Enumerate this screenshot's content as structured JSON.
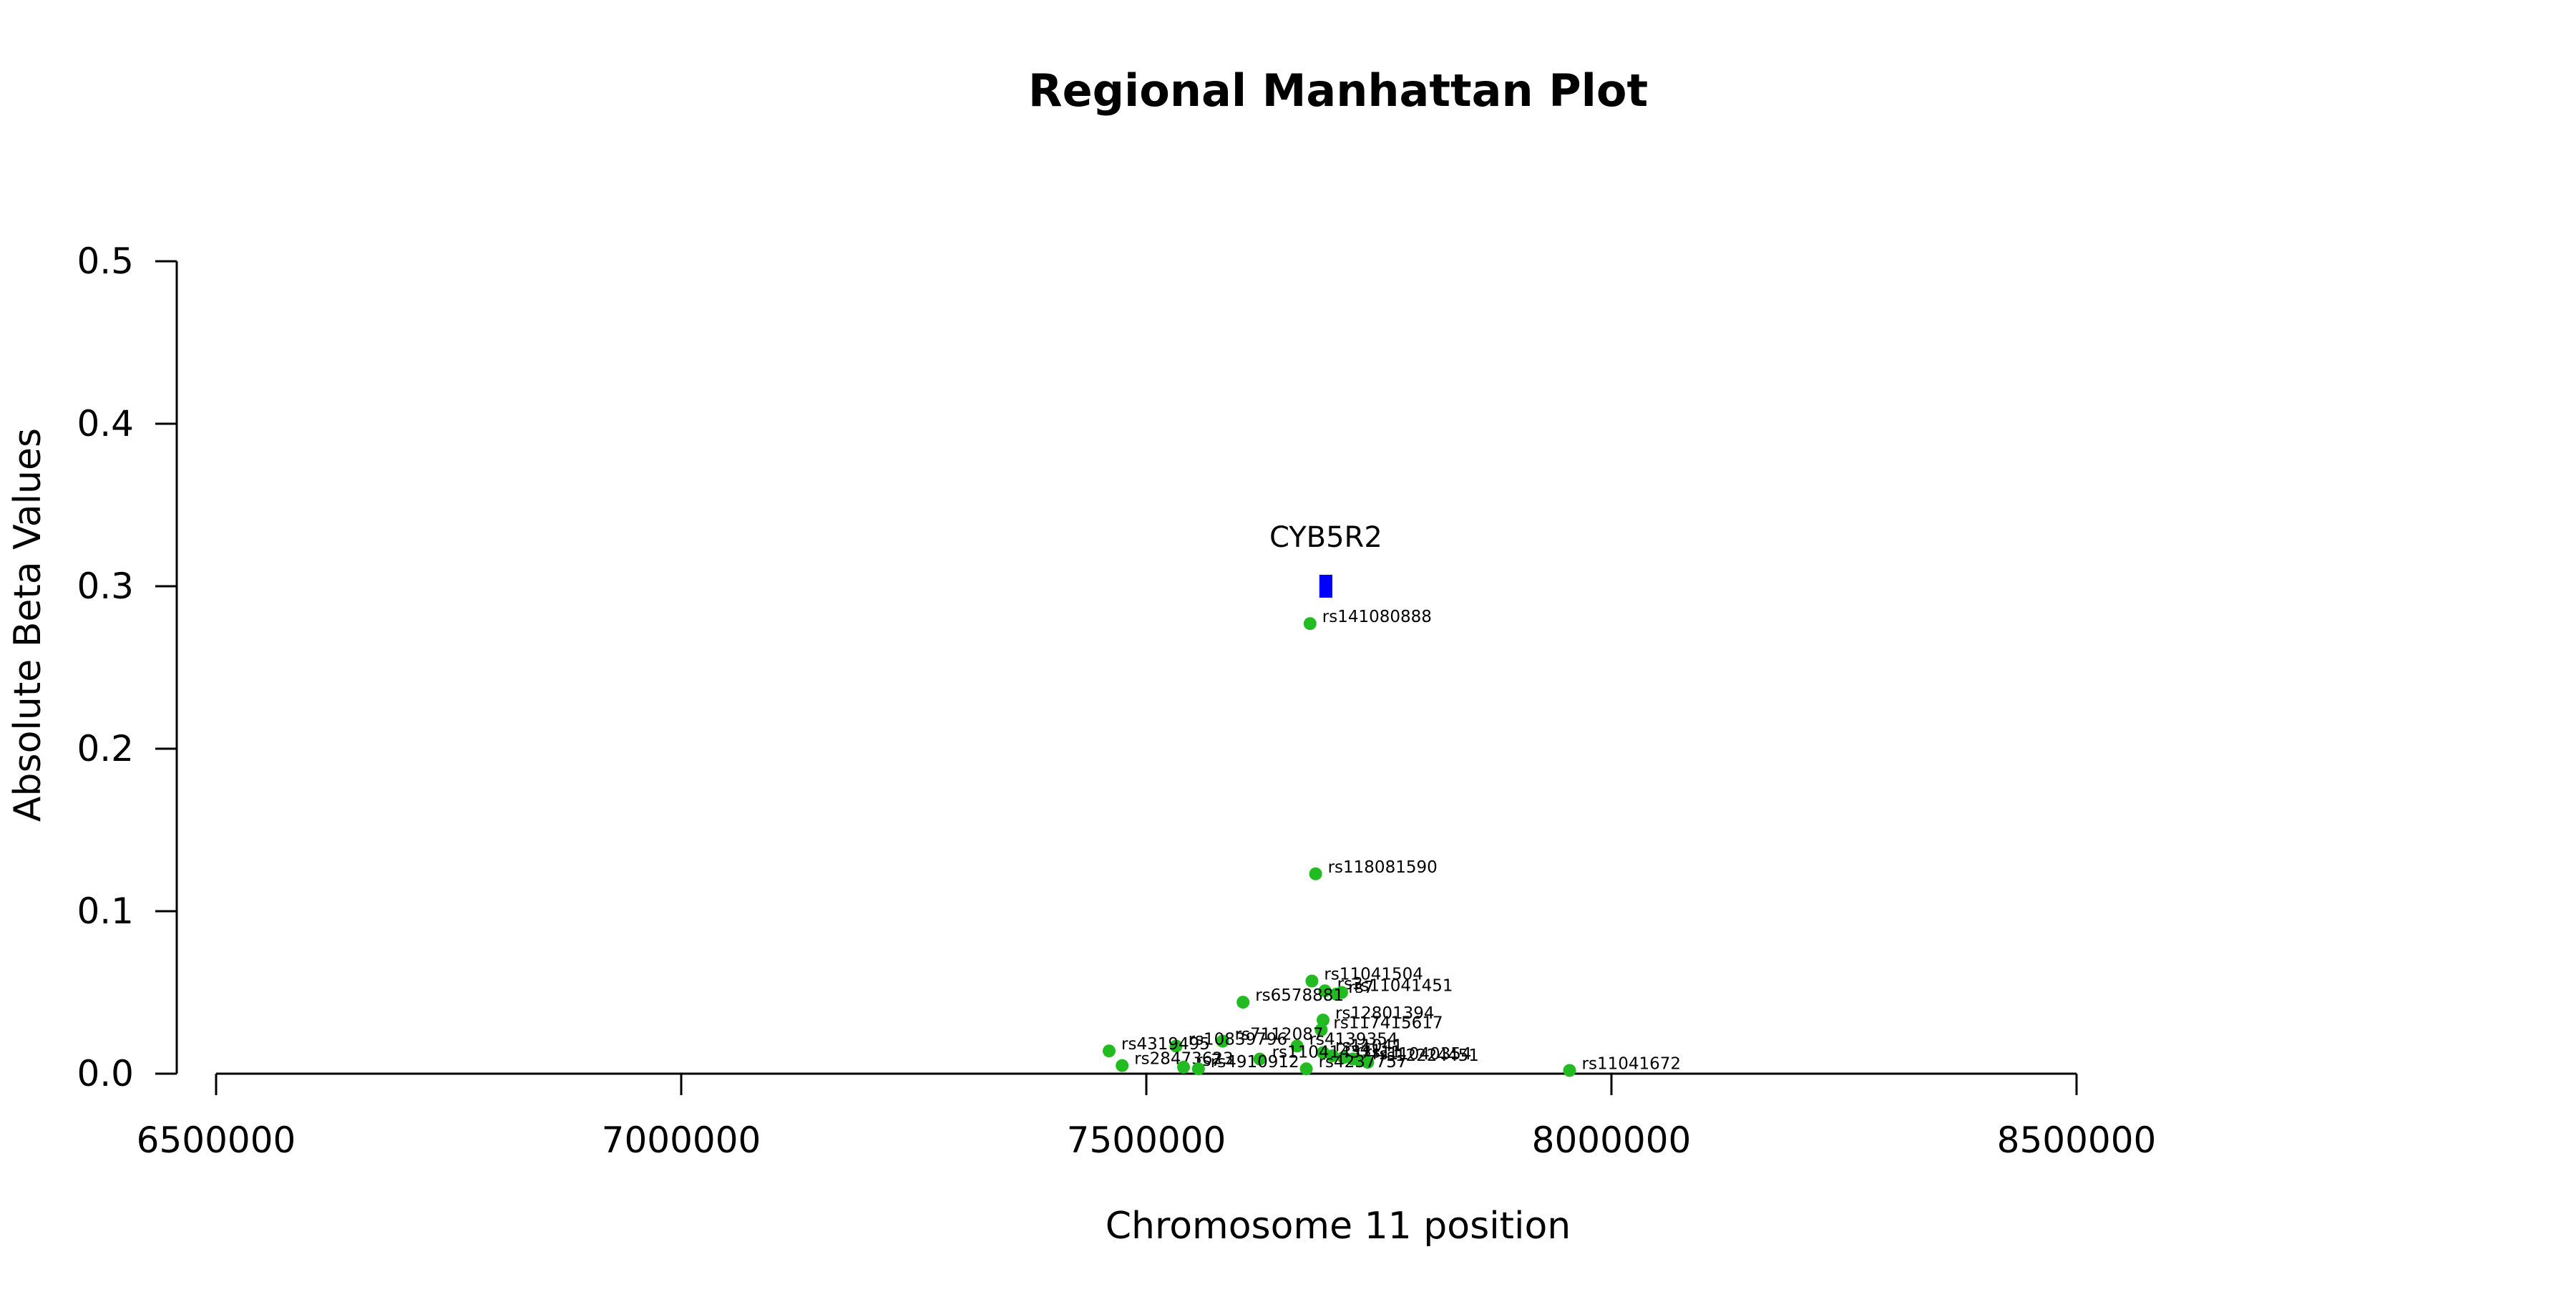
{
  "chart_data": {
    "type": "scatter",
    "title": "Regional Manhattan Plot",
    "xlabel": "Chromosome 11 position",
    "ylabel": "Absolute Beta Values",
    "xlim": [
      6500000,
      8500000
    ],
    "ylim": [
      0,
      0.5
    ],
    "xticks": [
      6500000,
      7000000,
      7500000,
      8000000,
      8500000
    ],
    "xtick_labels": [
      "6500000",
      "7000000",
      "7500000",
      "8000000",
      "8500000"
    ],
    "yticks": [
      0.0,
      0.1,
      0.2,
      0.3,
      0.4,
      0.5
    ],
    "ytick_labels": [
      "0.0",
      "0.1",
      "0.2",
      "0.3",
      "0.4",
      "0.5"
    ],
    "grid": false,
    "point_color": "#22bb22",
    "gene": {
      "name": "CYB5R2",
      "start": 7686000,
      "end": 7700000,
      "y": 0.3,
      "color": "#0000ff"
    },
    "points": [
      {
        "x": 7676000,
        "y": 0.277,
        "label": "rs141080888"
      },
      {
        "x": 7682000,
        "y": 0.123,
        "label": "rs118081590"
      },
      {
        "x": 7678000,
        "y": 0.057,
        "label": "rs11041504"
      },
      {
        "x": 7692000,
        "y": 0.051,
        "label": "rs3"
      },
      {
        "x": 7704000,
        "y": 0.049,
        "label": "rs7"
      },
      {
        "x": 7710000,
        "y": 0.05,
        "label": "rs11041451"
      },
      {
        "x": 7604000,
        "y": 0.044,
        "label": "rs6578881"
      },
      {
        "x": 7690000,
        "y": 0.033,
        "label": "rs12801394"
      },
      {
        "x": 7688000,
        "y": 0.027,
        "label": "rs117415617"
      },
      {
        "x": 7582000,
        "y": 0.02,
        "label": "rs7112087"
      },
      {
        "x": 7662000,
        "y": 0.017,
        "label": "rs4139354"
      },
      {
        "x": 7532000,
        "y": 0.017,
        "label": "rs10839796"
      },
      {
        "x": 7460000,
        "y": 0.014,
        "label": "rs4319495"
      },
      {
        "x": 7690000,
        "y": 0.013,
        "label": "rs11041"
      },
      {
        "x": 7700000,
        "y": 0.011,
        "label": "rs4"
      },
      {
        "x": 7712000,
        "y": 0.01,
        "label": "rs1"
      },
      {
        "x": 7722000,
        "y": 0.009,
        "label": "rs11"
      },
      {
        "x": 7730000,
        "y": 0.008,
        "label": "rs11040354"
      },
      {
        "x": 7738000,
        "y": 0.007,
        "label": "rs12224451"
      },
      {
        "x": 7474000,
        "y": 0.005,
        "label": "rs28473623"
      },
      {
        "x": 7622000,
        "y": 0.009,
        "label": "rs11041437"
      },
      {
        "x": 7540000,
        "y": 0.004,
        "label": "rs7"
      },
      {
        "x": 7556000,
        "y": 0.003,
        "label": "rs4910912"
      },
      {
        "x": 7672000,
        "y": 0.003,
        "label": "rs4237757"
      },
      {
        "x": 7955000,
        "y": 0.002,
        "label": "rs11041672"
      }
    ]
  }
}
